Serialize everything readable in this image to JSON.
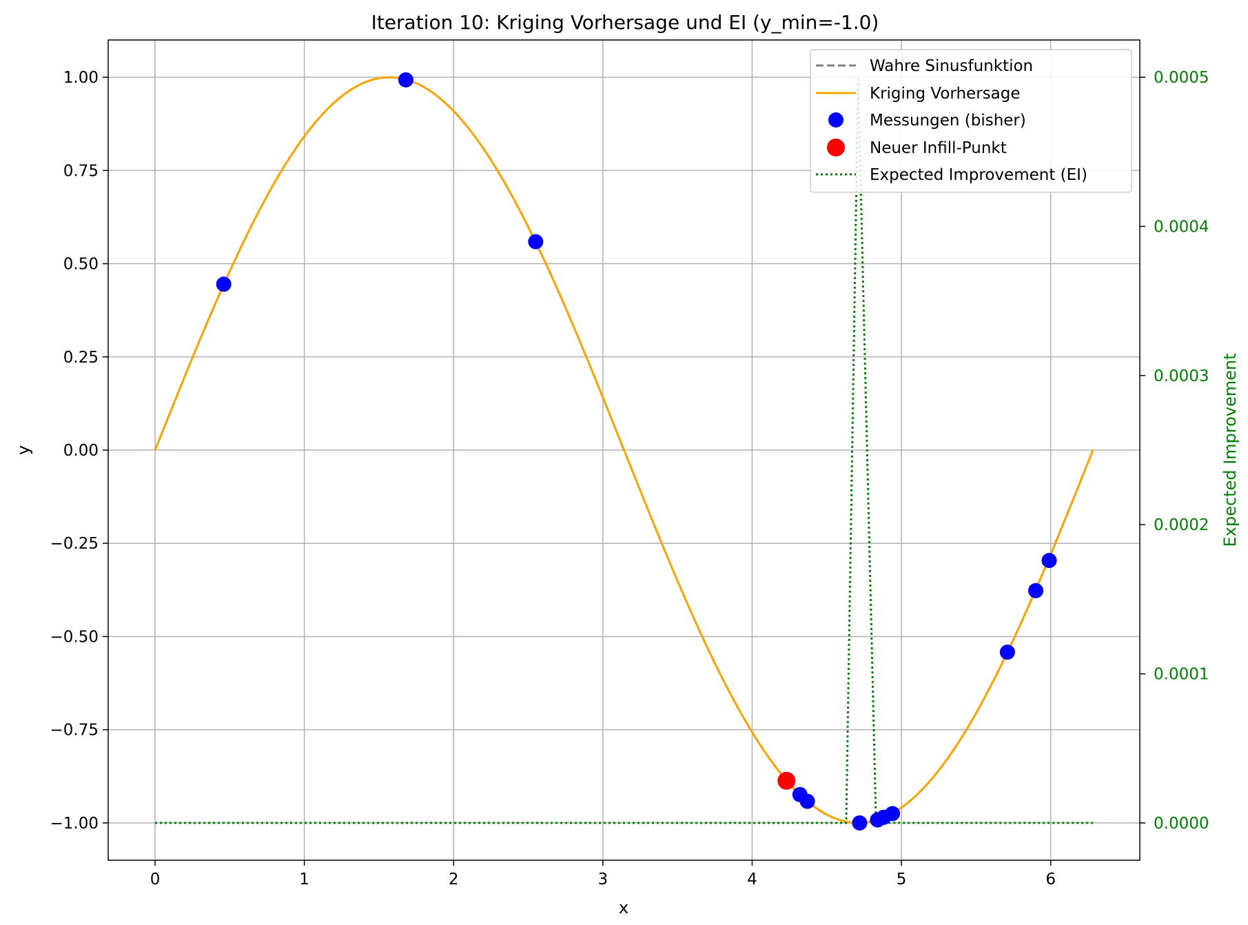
{
  "colors": {
    "true_curve": "#808080",
    "kriging": "#FFA500",
    "measurements": "#0000FF",
    "infill": "#FF0000",
    "ei": "#008000",
    "grid": "#b0b0b0"
  },
  "chart_data": {
    "type": "line",
    "title": "Iteration 10: Kriging Vorhersage und EI (y_min=-1.0)",
    "xlabel": "x",
    "ylabel": "y",
    "y2label": "Expected Improvement",
    "xlim": [
      -0.314,
      6.597
    ],
    "ylim": [
      -1.1,
      1.1
    ],
    "y2lim": [
      -2.5e-05,
      0.000525
    ],
    "grid": true,
    "legend_position": "top-right",
    "x_ticks": [
      0,
      1,
      2,
      3,
      4,
      5,
      6
    ],
    "x_tick_labels": [
      "0",
      "1",
      "2",
      "3",
      "4",
      "5",
      "6"
    ],
    "y_ticks": [
      1.0,
      0.75,
      0.5,
      0.25,
      0.0,
      -0.25,
      -0.5,
      -0.75,
      -1.0
    ],
    "y_tick_labels": [
      "1.00",
      "0.75",
      "0.50",
      "0.25",
      "0.00",
      "−0.25",
      "−0.50",
      "−0.75",
      "−1.00"
    ],
    "y2_ticks": [
      0.0005,
      0.0004,
      0.0003,
      0.0002,
      0.0001,
      0.0
    ],
    "y2_tick_labels": [
      "0.0005",
      "0.0004",
      "0.0003",
      "0.0002",
      "0.0001",
      "0.0000"
    ],
    "x_range": [
      0,
      6.2832
    ],
    "series": [
      {
        "name": "Wahre Sinusfunktion",
        "type": "line",
        "function": "sin(x)",
        "style": "dashed"
      },
      {
        "name": "Kriging Vorhersage",
        "type": "line",
        "function": "sin(x)",
        "style": "solid"
      },
      {
        "name": "Messungen (bisher)",
        "type": "scatter",
        "x": [
          0.46,
          1.68,
          2.55,
          4.32,
          4.37,
          4.72,
          4.84,
          4.88,
          4.94,
          5.71,
          5.9,
          5.99
        ],
        "y": [
          0.445,
          0.993,
          0.559,
          -0.924,
          -0.942,
          -1.0,
          -0.992,
          -0.985,
          -0.975,
          -0.542,
          -0.377,
          -0.296
        ]
      },
      {
        "name": "Neuer Infill-Punkt",
        "type": "scatter",
        "x": [
          4.23
        ],
        "y": [
          -0.887
        ]
      },
      {
        "name": "Expected Improvement (EI)",
        "type": "line",
        "axis": "right",
        "style": "dotted",
        "x": [
          0,
          4.62,
          4.63,
          4.71,
          4.83,
          4.84,
          6.2832
        ],
        "y": [
          0.0,
          0.0,
          0.0,
          0.0005,
          0.0,
          0.0,
          0.0
        ]
      }
    ]
  }
}
